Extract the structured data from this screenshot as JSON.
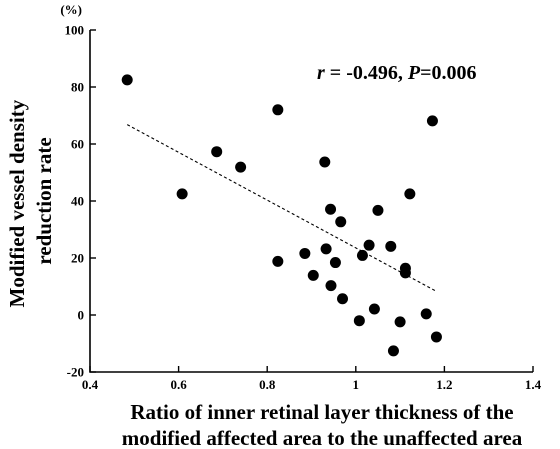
{
  "chart_data": {
    "type": "scatter",
    "xlabel_lines": [
      "Ratio of inner retinal layer thickness of the",
      "modified affected area to the unaffected area"
    ],
    "ylabel_lines": [
      "Modified vessel density",
      "reduction rate"
    ],
    "y_unit": "(%)",
    "xlim": [
      0.4,
      1.4
    ],
    "ylim": [
      -20,
      100
    ],
    "xticks": [
      0.4,
      0.6,
      0.8,
      1.0,
      1.2,
      1.4
    ],
    "xtick_labels": [
      "0.4",
      "0.6",
      "0.8",
      "1",
      "1.2",
      "1.4"
    ],
    "yticks": [
      -20,
      0,
      20,
      40,
      60,
      80,
      100
    ],
    "ytick_labels": [
      "-20",
      "0",
      "20",
      "40",
      "60",
      "80",
      "100"
    ],
    "grid": false,
    "points": [
      {
        "x": 0.484,
        "y": 82.5
      },
      {
        "x": 0.608,
        "y": 42.5
      },
      {
        "x": 0.686,
        "y": 57.3
      },
      {
        "x": 0.74,
        "y": 51.9
      },
      {
        "x": 0.824,
        "y": 72.0
      },
      {
        "x": 0.824,
        "y": 18.8
      },
      {
        "x": 0.885,
        "y": 21.6
      },
      {
        "x": 0.904,
        "y": 13.9
      },
      {
        "x": 0.93,
        "y": 53.7
      },
      {
        "x": 0.933,
        "y": 23.2
      },
      {
        "x": 0.943,
        "y": 37.1
      },
      {
        "x": 0.944,
        "y": 10.3
      },
      {
        "x": 0.954,
        "y": 18.4
      },
      {
        "x": 0.966,
        "y": 32.7
      },
      {
        "x": 0.97,
        "y": 5.7
      },
      {
        "x": 1.008,
        "y": -2.0
      },
      {
        "x": 1.015,
        "y": 20.9
      },
      {
        "x": 1.03,
        "y": 24.5
      },
      {
        "x": 1.042,
        "y": 2.1
      },
      {
        "x": 1.05,
        "y": 36.7
      },
      {
        "x": 1.079,
        "y": 24.1
      },
      {
        "x": 1.085,
        "y": -12.6
      },
      {
        "x": 1.1,
        "y": -2.4
      },
      {
        "x": 1.112,
        "y": 16.4
      },
      {
        "x": 1.112,
        "y": 14.8
      },
      {
        "x": 1.122,
        "y": 42.5
      },
      {
        "x": 1.159,
        "y": 0.4
      },
      {
        "x": 1.173,
        "y": 68.1
      },
      {
        "x": 1.182,
        "y": -7.7
      }
    ],
    "trendline": {
      "x": [
        0.484,
        1.182
      ],
      "y": [
        66.8,
        8.3
      ],
      "style": "dashed"
    },
    "annotation": {
      "r_symbol": "r",
      "r_text": " = -0.496, ",
      "p_symbol": "P",
      "p_text": "=0.006"
    },
    "colors": {
      "points": "#000000",
      "axes": "#000000",
      "background": "#ffffff"
    }
  }
}
